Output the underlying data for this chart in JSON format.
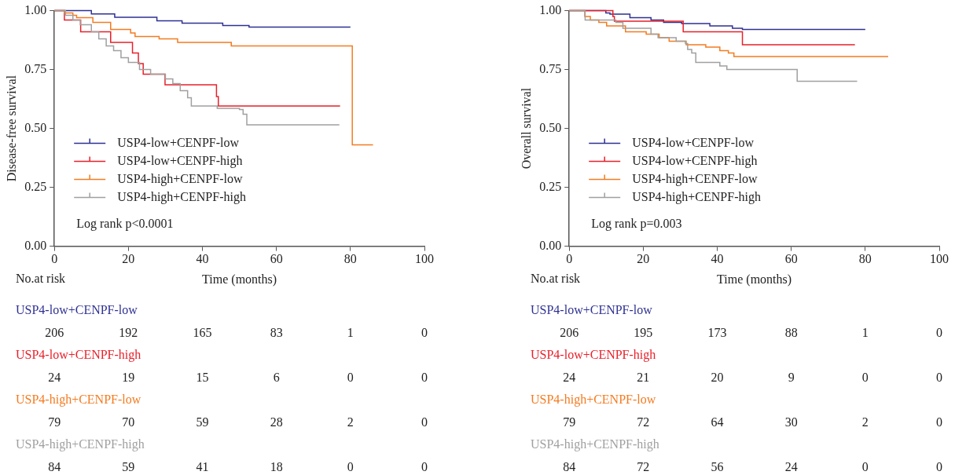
{
  "chart_data": [
    {
      "type": "step",
      "xlabel": "Time (months)",
      "ylabel": "Disease-free survival",
      "xlim": [
        0,
        100
      ],
      "xticks": [
        0,
        20,
        40,
        60,
        80,
        100
      ],
      "ylim": [
        0,
        1
      ],
      "yticks": [
        {
          "value": 0,
          "label": "0.00"
        },
        {
          "value": 0.25,
          "label": "0.25"
        },
        {
          "value": 0.5,
          "label": "0.50"
        },
        {
          "value": 0.75,
          "label": "0.75"
        },
        {
          "value": 1,
          "label": "1.00"
        }
      ],
      "legend": "center left",
      "series": [
        {
          "name": "USP4-low+CENPF-low",
          "color": "#2e3192",
          "x": [
            0,
            10,
            16.3,
            27.7,
            34.5,
            45.5,
            52.6,
            80
          ],
          "values": [
            1,
            0.986,
            0.972,
            0.957,
            0.947,
            0.937,
            0.93,
            0.93
          ]
        },
        {
          "name": "USP4-low+CENPF-high",
          "color": "#e8202a",
          "x": [
            0,
            2.7,
            7.1,
            15.2,
            21.1,
            22.7,
            24,
            29.9,
            43.8,
            44.3,
            77.2
          ],
          "values": [
            1,
            0.96,
            0.91,
            0.865,
            0.82,
            0.775,
            0.73,
            0.685,
            0.635,
            0.595,
            0.595
          ]
        },
        {
          "name": "USP4-high+CENPF-low",
          "color": "#f47b20",
          "x": [
            0,
            2.7,
            5,
            6,
            10.4,
            15.2,
            20.6,
            21.8,
            28.3,
            33.3,
            47.8,
            80.5,
            86.1
          ],
          "values": [
            1,
            0.99,
            0.98,
            0.97,
            0.95,
            0.92,
            0.905,
            0.89,
            0.88,
            0.865,
            0.85,
            0.43,
            0.43
          ]
        },
        {
          "name": "USP4-high+CENPF-high",
          "color": "#a0a0a0",
          "x": [
            0,
            3,
            5,
            7,
            10,
            12,
            14,
            16,
            18,
            20,
            23,
            26,
            30,
            32,
            34,
            36,
            37,
            44,
            50,
            51,
            52,
            77
          ],
          "values": [
            1,
            0.98,
            0.96,
            0.94,
            0.91,
            0.88,
            0.85,
            0.83,
            0.8,
            0.78,
            0.75,
            0.73,
            0.71,
            0.69,
            0.66,
            0.63,
            0.595,
            0.585,
            0.58,
            0.56,
            0.515,
            0.515
          ]
        }
      ],
      "annotations": [
        "Log rank p<0.0001",
        "No.at risk",
        "206 192 165 83 1 0",
        "24 19 15 6 0 0",
        "79 70 59 28 2 0",
        "84 59 41 18 0 0"
      ]
    },
    {
      "type": "step",
      "xlabel": "Time (months)",
      "ylabel": "Overall survival",
      "xlim": [
        0,
        100
      ],
      "xticks": [
        0,
        20,
        40,
        60,
        80,
        100
      ],
      "ylim": [
        0,
        1
      ],
      "yticks": [
        {
          "value": 0,
          "label": "0.00"
        },
        {
          "value": 0.25,
          "label": "0.25"
        },
        {
          "value": 0.5,
          "label": "0.50"
        },
        {
          "value": 0.75,
          "label": "0.75"
        },
        {
          "value": 1,
          "label": "1.00"
        }
      ],
      "legend": "center left",
      "series": [
        {
          "name": "USP4-low+CENPF-low",
          "color": "#2e3192",
          "x": [
            0,
            9.9,
            11,
            16.4,
            22.1,
            25.5,
            30.4,
            38,
            44.1,
            46.8,
            80
          ],
          "values": [
            1,
            0.99,
            0.985,
            0.97,
            0.96,
            0.95,
            0.945,
            0.935,
            0.925,
            0.92,
            0.92
          ]
        },
        {
          "name": "USP4-low+CENPF-high",
          "color": "#e8202a",
          "x": [
            0,
            11.8,
            12.2,
            30.8,
            46.8,
            77.2
          ],
          "values": [
            1,
            0.975,
            0.955,
            0.91,
            0.855,
            0.855
          ]
        },
        {
          "name": "USP4-high+CENPF-low",
          "color": "#f47b20",
          "x": [
            0,
            4.2,
            5.7,
            8,
            10.1,
            15.2,
            20.8,
            24.3,
            27,
            31.6,
            36.9,
            40.7,
            43,
            44.5,
            86.2
          ],
          "values": [
            1,
            0.975,
            0.96,
            0.95,
            0.935,
            0.91,
            0.9,
            0.885,
            0.87,
            0.855,
            0.845,
            0.83,
            0.82,
            0.805,
            0.805
          ]
        },
        {
          "name": "USP4-high+CENPF-high",
          "color": "#a0a0a0",
          "x": [
            0,
            4.3,
            12.6,
            14.5,
            22.1,
            24,
            28.9,
            31.4,
            32,
            33.1,
            34.2,
            40.7,
            42.6,
            61.6,
            77.8
          ],
          "values": [
            1,
            0.96,
            0.95,
            0.925,
            0.9,
            0.885,
            0.87,
            0.86,
            0.835,
            0.82,
            0.78,
            0.765,
            0.75,
            0.7,
            0.7
          ]
        }
      ],
      "annotations": [
        "Log rank p=0.003",
        "No.at risk",
        "206 195 173 88 1 0",
        "24 21 20 9 0 0",
        "79 72 64 30 2 0",
        "84 72 56 24 0 0"
      ]
    }
  ]
}
